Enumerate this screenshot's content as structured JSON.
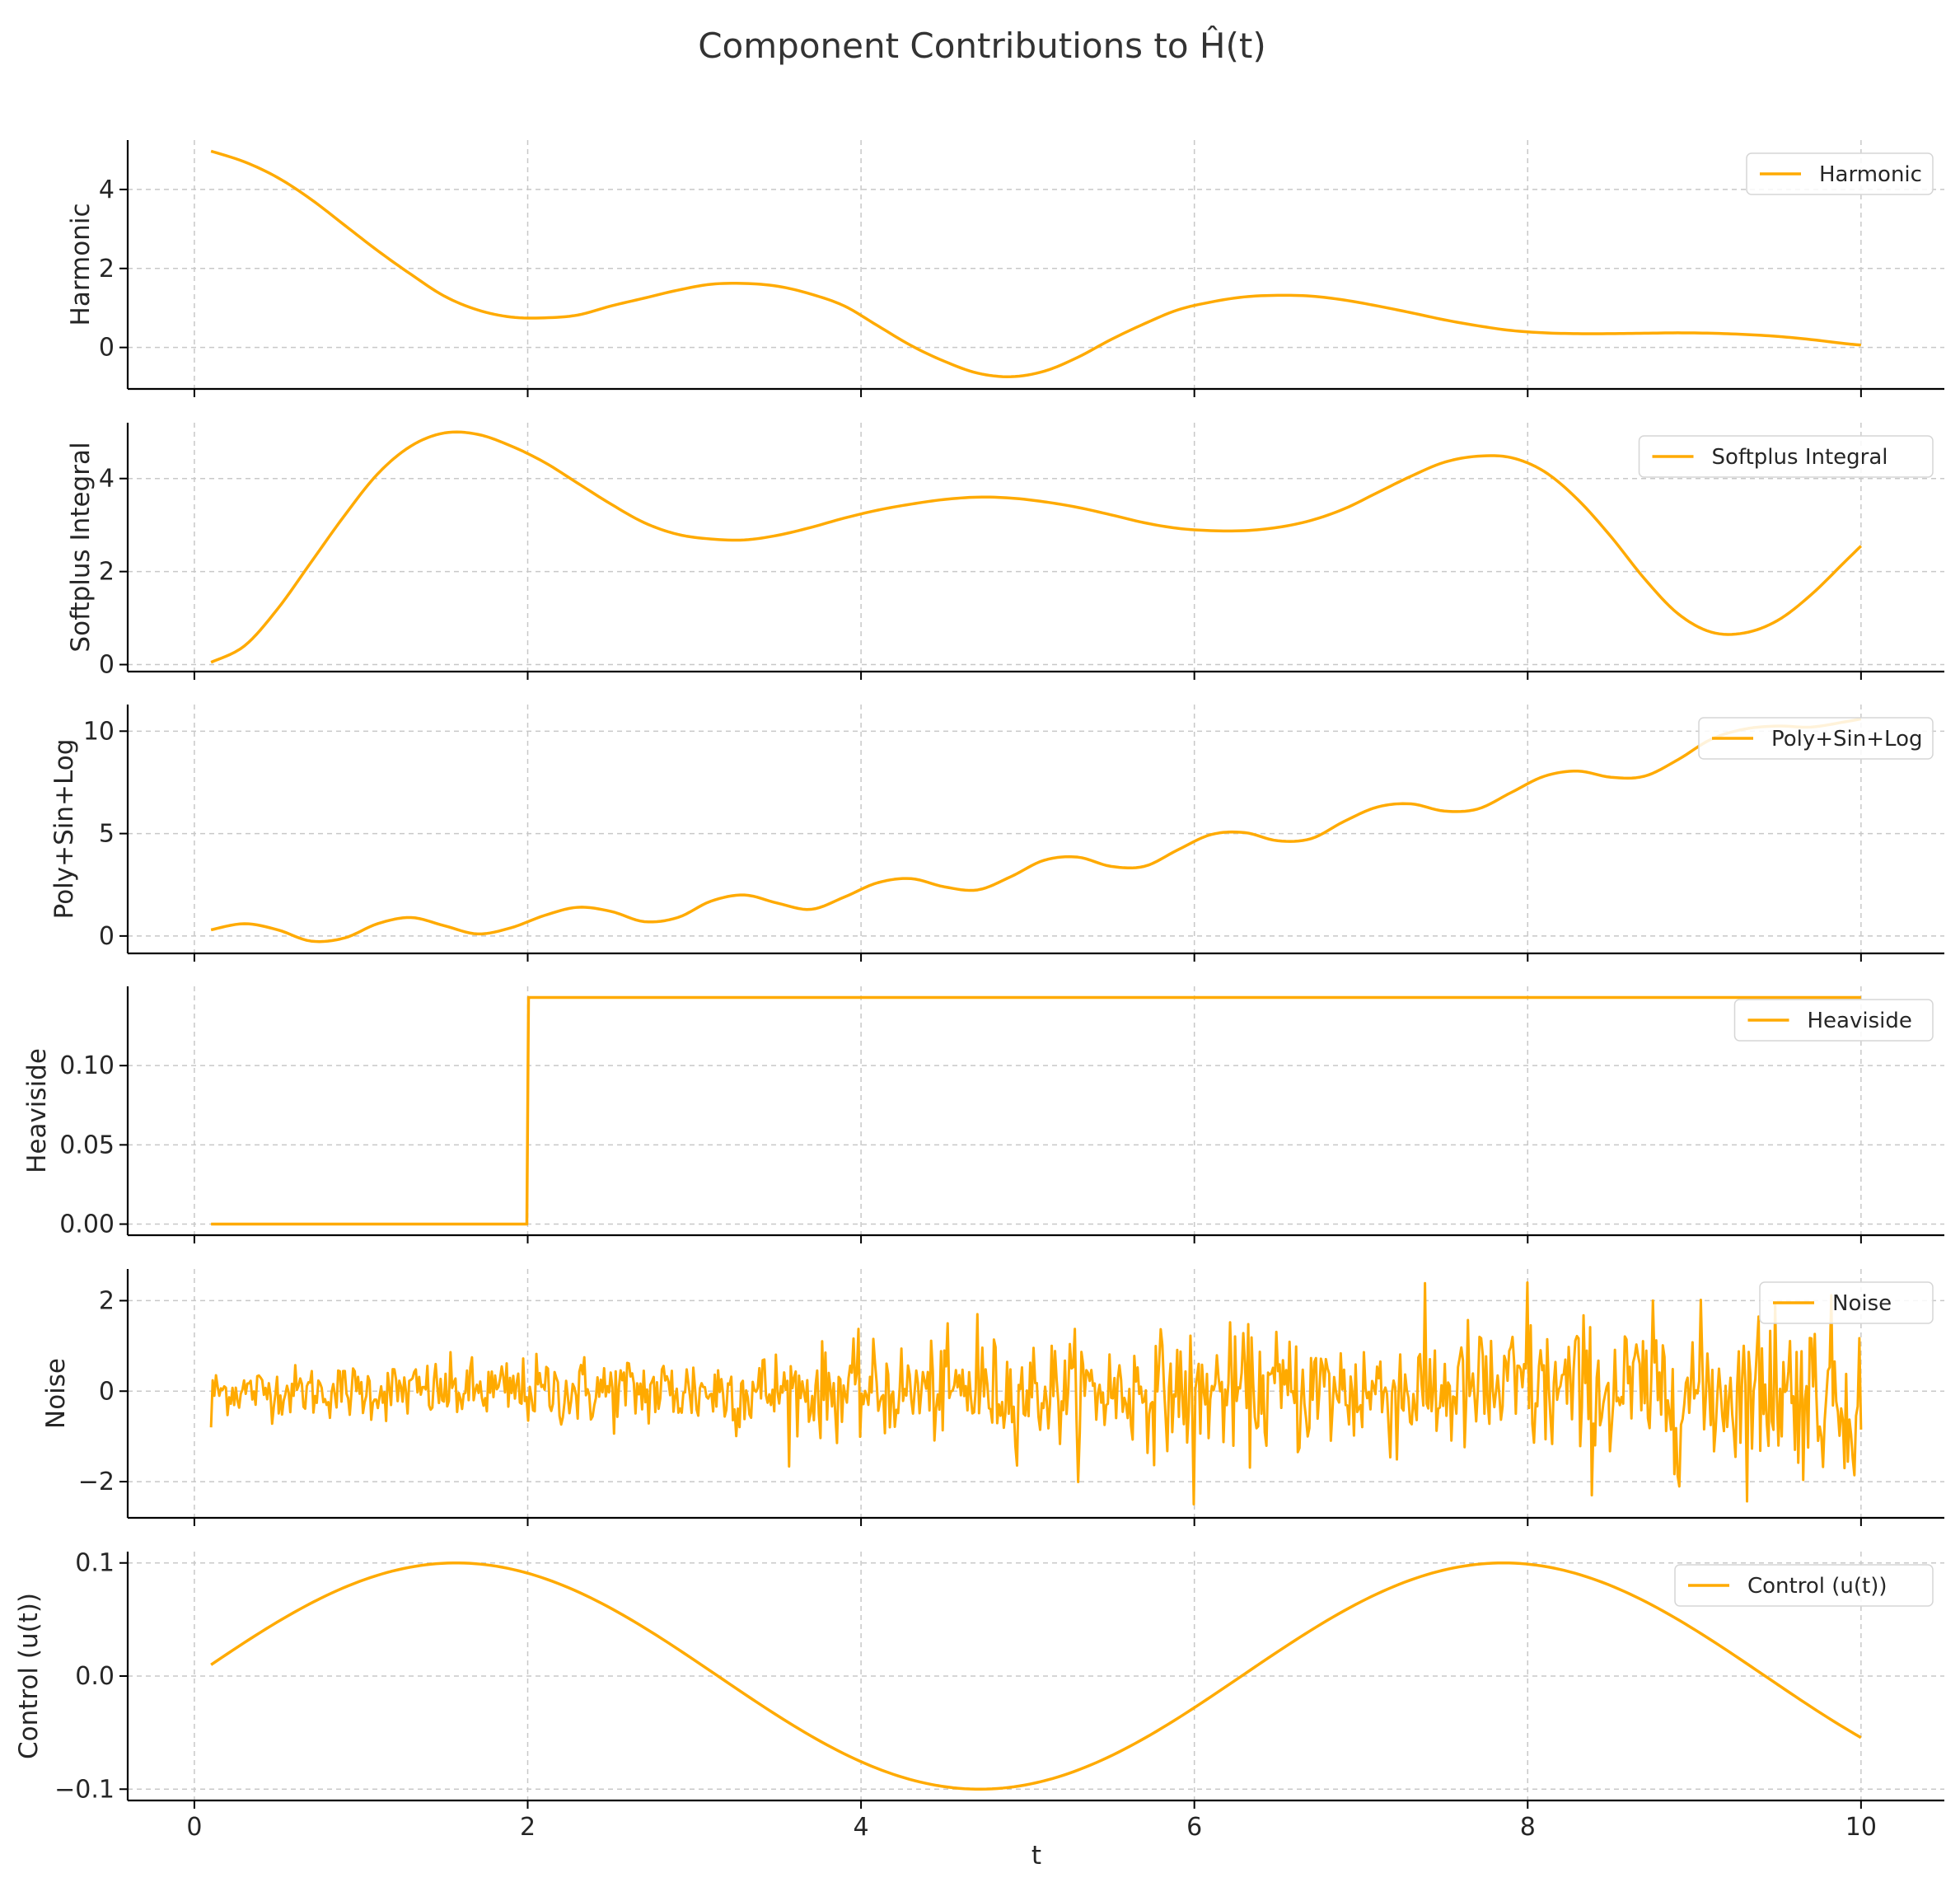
{
  "title": "Component Contributions to Ĥ(t)",
  "line_color": "#FFAA00",
  "chart_data": {
    "type": "line",
    "title": "Component Contributions to Ĥ(t)",
    "xlabel": "t",
    "xlim": [
      -0.4,
      10.5
    ],
    "x_ticks": [
      0,
      2,
      4,
      6,
      8,
      10
    ],
    "x_tick_labels": [
      "0",
      "2",
      "4",
      "6",
      "8",
      "10"
    ],
    "grid": true,
    "panels": [
      {
        "ylabel": "Harmonic",
        "legend": "Harmonic",
        "ylim": [
          -1.05,
          5.25
        ],
        "y_ticks": [
          0,
          2,
          4
        ],
        "y_tick_labels": [
          "0",
          "2",
          "4"
        ],
        "x": [
          0.1,
          0.3,
          0.5,
          0.7,
          0.9,
          1.1,
          1.3,
          1.5,
          1.7,
          1.9,
          2.1,
          2.3,
          2.5,
          2.7,
          2.9,
          3.1,
          3.3,
          3.5,
          3.7,
          3.9,
          4.1,
          4.3,
          4.5,
          4.7,
          4.9,
          5.1,
          5.3,
          5.5,
          5.7,
          5.9,
          6.1,
          6.3,
          6.5,
          6.7,
          6.9,
          7.1,
          7.3,
          7.5,
          7.7,
          7.9,
          8.1,
          8.3,
          8.5,
          8.7,
          8.9,
          9.1,
          9.3,
          9.5,
          9.7,
          9.9,
          10.0
        ],
        "y": [
          4.97,
          4.7,
          4.3,
          3.75,
          3.1,
          2.45,
          1.85,
          1.3,
          0.95,
          0.77,
          0.75,
          0.82,
          1.05,
          1.25,
          1.45,
          1.6,
          1.62,
          1.55,
          1.35,
          1.05,
          0.55,
          0.05,
          -0.35,
          -0.65,
          -0.74,
          -0.6,
          -0.25,
          0.2,
          0.6,
          0.95,
          1.15,
          1.28,
          1.32,
          1.3,
          1.2,
          1.05,
          0.88,
          0.7,
          0.55,
          0.43,
          0.37,
          0.35,
          0.35,
          0.36,
          0.37,
          0.36,
          0.33,
          0.28,
          0.2,
          0.1,
          0.06
        ]
      },
      {
        "ylabel": "Softplus Integral",
        "legend": "Softplus Integral",
        "ylim": [
          -0.15,
          5.2
        ],
        "y_ticks": [
          0,
          2,
          4
        ],
        "y_tick_labels": [
          "0",
          "2",
          "4"
        ],
        "x": [
          0.1,
          0.3,
          0.5,
          0.7,
          0.9,
          1.1,
          1.3,
          1.5,
          1.7,
          1.9,
          2.1,
          2.3,
          2.5,
          2.7,
          2.9,
          3.1,
          3.3,
          3.5,
          3.7,
          3.9,
          4.1,
          4.3,
          4.5,
          4.7,
          4.9,
          5.1,
          5.3,
          5.5,
          5.7,
          5.9,
          6.1,
          6.3,
          6.5,
          6.7,
          6.9,
          7.1,
          7.3,
          7.5,
          7.7,
          7.9,
          8.1,
          8.3,
          8.5,
          8.7,
          8.9,
          9.1,
          9.3,
          9.5,
          9.7,
          9.9,
          10.0
        ],
        "y": [
          0.05,
          0.4,
          1.2,
          2.2,
          3.2,
          4.1,
          4.7,
          4.98,
          4.95,
          4.7,
          4.35,
          3.9,
          3.45,
          3.05,
          2.8,
          2.7,
          2.68,
          2.78,
          2.95,
          3.15,
          3.32,
          3.45,
          3.55,
          3.6,
          3.58,
          3.5,
          3.38,
          3.22,
          3.05,
          2.93,
          2.88,
          2.88,
          2.95,
          3.1,
          3.35,
          3.7,
          4.05,
          4.35,
          4.48,
          4.45,
          4.15,
          3.55,
          2.75,
          1.85,
          1.1,
          0.7,
          0.68,
          0.95,
          1.5,
          2.2,
          2.55
        ]
      },
      {
        "ylabel": "Poly+Sin+Log",
        "legend": "Poly+Sin+Log",
        "ylim": [
          -0.85,
          11.3
        ],
        "y_ticks": [
          0,
          5,
          10
        ],
        "y_tick_labels": [
          "0",
          "5",
          "10"
        ],
        "x": [
          0.1,
          0.3,
          0.5,
          0.7,
          0.9,
          1.1,
          1.3,
          1.5,
          1.7,
          1.9,
          2.1,
          2.3,
          2.5,
          2.7,
          2.9,
          3.1,
          3.3,
          3.5,
          3.7,
          3.9,
          4.1,
          4.3,
          4.5,
          4.7,
          4.9,
          5.1,
          5.3,
          5.5,
          5.7,
          5.9,
          6.1,
          6.3,
          6.5,
          6.7,
          6.9,
          7.1,
          7.3,
          7.5,
          7.7,
          7.9,
          8.1,
          8.3,
          8.5,
          8.7,
          8.9,
          9.1,
          9.3,
          9.5,
          9.7,
          9.9,
          10.0
        ],
        "y": [
          0.3,
          0.6,
          0.3,
          -0.25,
          -0.1,
          0.6,
          0.9,
          0.5,
          0.1,
          0.4,
          1.0,
          1.4,
          1.2,
          0.7,
          0.9,
          1.7,
          2.0,
          1.6,
          1.3,
          1.9,
          2.6,
          2.8,
          2.4,
          2.25,
          2.9,
          3.7,
          3.85,
          3.4,
          3.4,
          4.2,
          4.95,
          5.05,
          4.65,
          4.75,
          5.6,
          6.3,
          6.45,
          6.1,
          6.2,
          7.0,
          7.8,
          8.05,
          7.75,
          7.8,
          8.6,
          9.6,
          10.1,
          10.25,
          10.2,
          10.45,
          10.6
        ]
      },
      {
        "ylabel": "Heaviside",
        "legend": "Heaviside",
        "ylim": [
          -0.007,
          0.15
        ],
        "y_ticks": [
          0.0,
          0.05,
          0.1
        ],
        "y_tick_labels": [
          "0.00",
          "0.05",
          "0.10"
        ],
        "x": [
          0.1,
          1.995,
          2.005,
          10.0
        ],
        "y": [
          0.0,
          0.0,
          0.143,
          0.143
        ]
      },
      {
        "ylabel": "Noise",
        "legend": "Noise",
        "ylim": [
          -2.8,
          2.7
        ],
        "y_ticks": [
          -2,
          0,
          2
        ],
        "y_tick_labels": [
          "−2",
          "0",
          "2"
        ],
        "noise_sigma_start": 0.25,
        "noise_sigma_end": 0.9,
        "x": [
          0.1,
          4.7,
          6.0,
          8.0,
          8.38,
          9.48,
          9.9,
          10.0
        ],
        "y": [
          -0.8,
          1.7,
          -2.5,
          2.4,
          -2.3,
          1.95,
          -1.7,
          -0.85
        ]
      },
      {
        "ylabel": "Control (u(t))",
        "legend": "Control (u(t))",
        "ylim": [
          -0.11,
          0.11
        ],
        "y_ticks": [
          -0.1,
          0.0,
          0.1
        ],
        "y_tick_labels": [
          "−0.1",
          "0.0",
          "0.1"
        ],
        "amplitude": 0.1,
        "x": [
          0.1,
          1.57,
          3.14,
          4.71,
          6.28,
          7.85,
          9.42,
          10.0
        ],
        "y": [
          0.01,
          0.1,
          0.0,
          -0.1,
          0.0,
          0.1,
          0.0,
          -0.054
        ]
      }
    ]
  }
}
